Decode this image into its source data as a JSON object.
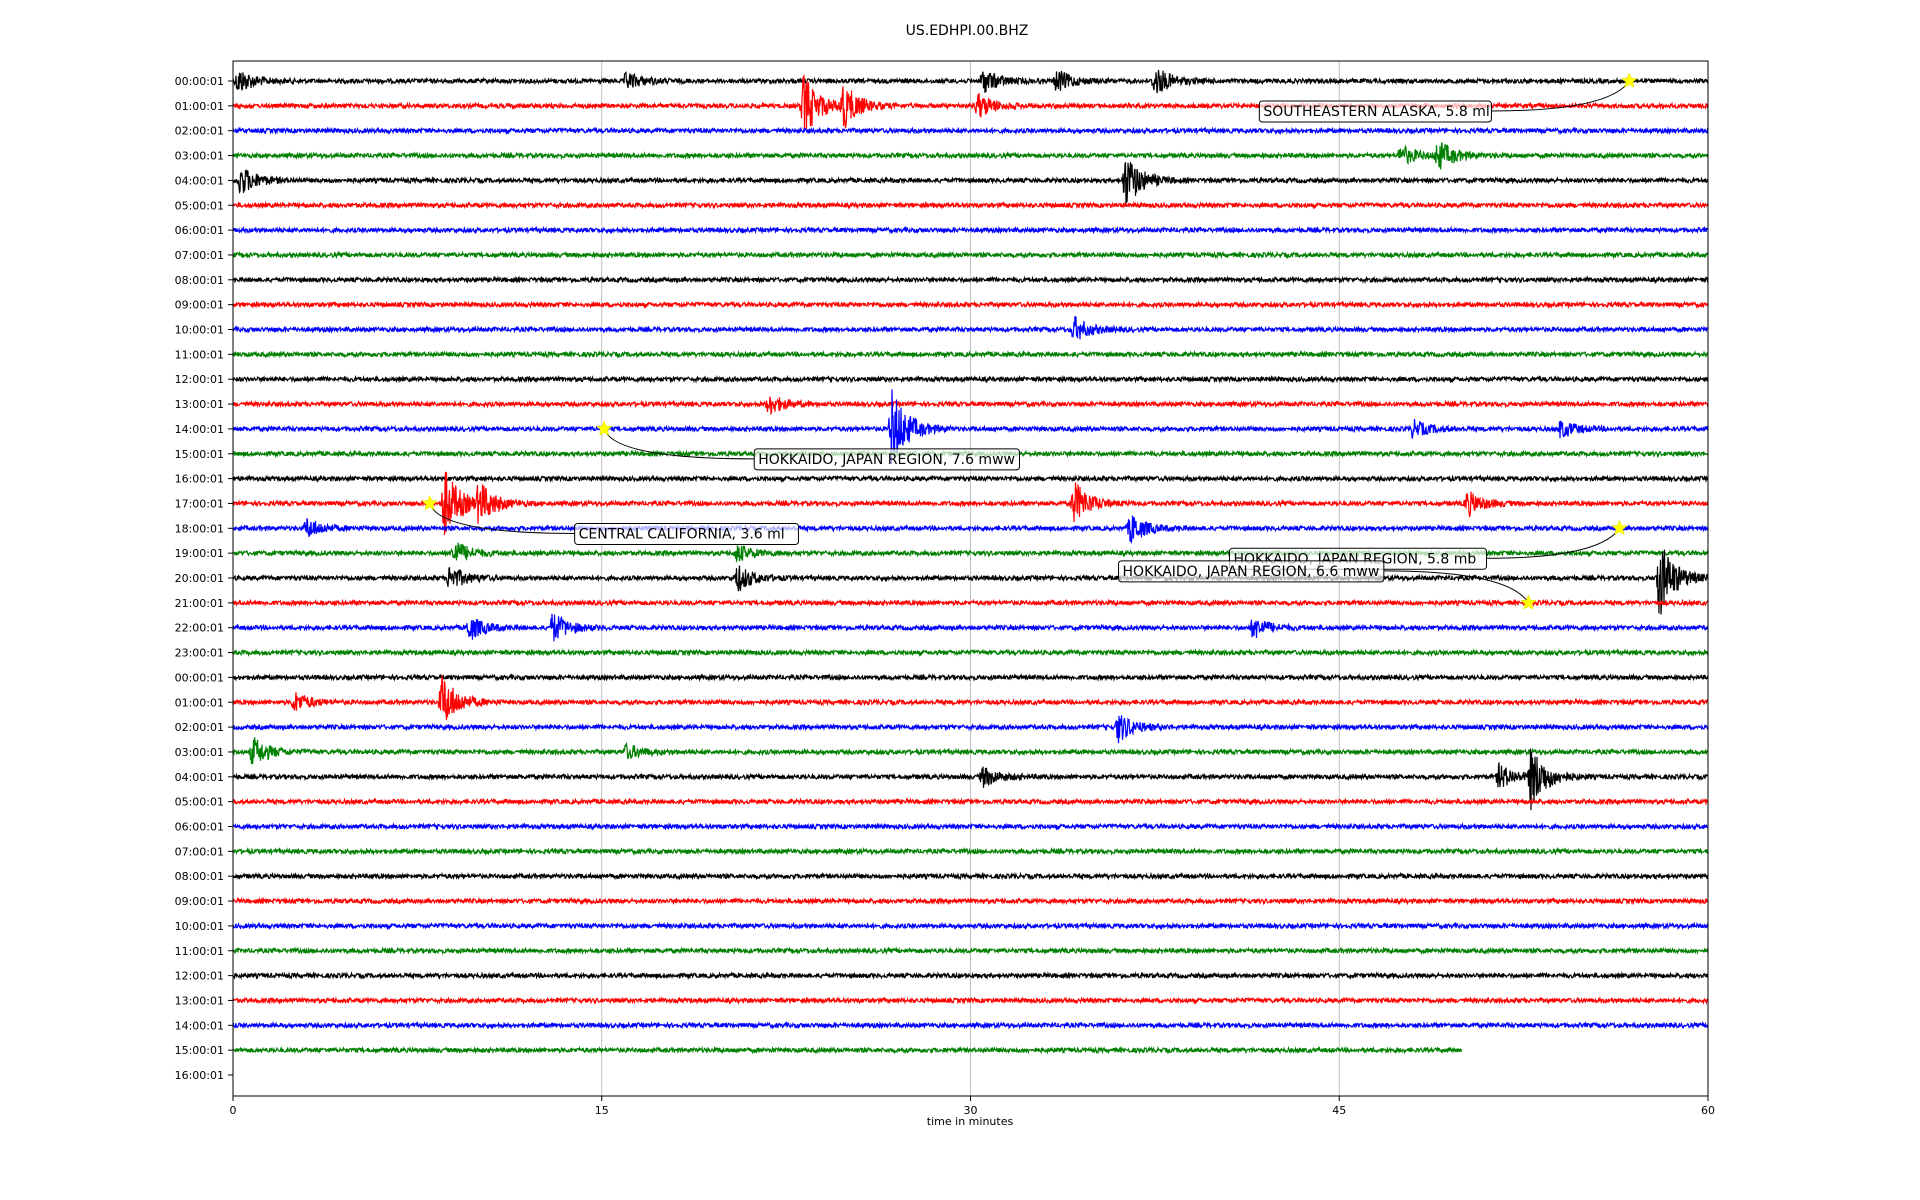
{
  "chart_data": {
    "type": "line",
    "title": "US.EDHPI.00.BHZ",
    "xlabel": "time in minutes",
    "ylabel": "",
    "xlim": [
      0,
      60
    ],
    "x_ticks": [
      "0",
      "15",
      "30",
      "45",
      "60"
    ],
    "x_tick_values": [
      0,
      15,
      30,
      45,
      60
    ],
    "grid": true,
    "trace_colors": [
      "#000000",
      "#ff0000",
      "#0000ff",
      "#008000"
    ],
    "row_labels": [
      "00:00:01",
      "01:00:01",
      "02:00:01",
      "03:00:01",
      "04:00:01",
      "05:00:01",
      "06:00:01",
      "07:00:01",
      "08:00:01",
      "09:00:01",
      "10:00:01",
      "11:00:01",
      "12:00:01",
      "13:00:01",
      "14:00:01",
      "15:00:01",
      "16:00:01",
      "17:00:01",
      "18:00:01",
      "19:00:01",
      "20:00:01",
      "21:00:01",
      "22:00:01",
      "23:00:01",
      "00:00:01",
      "01:00:01",
      "02:00:01",
      "03:00:01",
      "04:00:01",
      "05:00:01",
      "06:00:01",
      "07:00:01",
      "08:00:01",
      "09:00:01",
      "10:00:01",
      "11:00:01",
      "12:00:01",
      "13:00:01",
      "14:00:01",
      "15:00:01",
      "16:00:01"
    ],
    "last_trace_end_minute": 50,
    "bursts": [
      {
        "row": 0,
        "minute": 0.2,
        "amp": 0.5
      },
      {
        "row": 0,
        "minute": 16,
        "amp": 0.35
      },
      {
        "row": 0,
        "minute": 30.5,
        "amp": 0.5
      },
      {
        "row": 0,
        "minute": 33.5,
        "amp": 0.45
      },
      {
        "row": 0,
        "minute": 37.5,
        "amp": 0.6
      },
      {
        "row": 1,
        "minute": 23.2,
        "amp": 1.3
      },
      {
        "row": 1,
        "minute": 24.8,
        "amp": 0.9
      },
      {
        "row": 1,
        "minute": 30.3,
        "amp": 0.5
      },
      {
        "row": 3,
        "minute": 47.5,
        "amp": 0.4
      },
      {
        "row": 3,
        "minute": 49,
        "amp": 0.6
      },
      {
        "row": 4,
        "minute": 0.3,
        "amp": 0.6
      },
      {
        "row": 4,
        "minute": 36.3,
        "amp": 1.1
      },
      {
        "row": 10,
        "minute": 34.2,
        "amp": 0.5
      },
      {
        "row": 13,
        "minute": 21.8,
        "amp": 0.4
      },
      {
        "row": 14,
        "minute": 26.8,
        "amp": 1.6
      },
      {
        "row": 14,
        "minute": 48,
        "amp": 0.35
      },
      {
        "row": 14,
        "minute": 54,
        "amp": 0.35
      },
      {
        "row": 17,
        "minute": 8.6,
        "amp": 1.4
      },
      {
        "row": 17,
        "minute": 10,
        "amp": 0.8
      },
      {
        "row": 17,
        "minute": 34.2,
        "amp": 0.9
      },
      {
        "row": 17,
        "minute": 50.2,
        "amp": 0.5
      },
      {
        "row": 18,
        "minute": 3,
        "amp": 0.4
      },
      {
        "row": 18,
        "minute": 36.5,
        "amp": 0.6
      },
      {
        "row": 19,
        "minute": 9,
        "amp": 0.5
      },
      {
        "row": 19,
        "minute": 20.5,
        "amp": 0.35
      },
      {
        "row": 20,
        "minute": 8.8,
        "amp": 0.5
      },
      {
        "row": 20,
        "minute": 20.5,
        "amp": 0.55
      },
      {
        "row": 20,
        "minute": 58,
        "amp": 1.6
      },
      {
        "row": 22,
        "minute": 9.6,
        "amp": 0.5
      },
      {
        "row": 22,
        "minute": 13,
        "amp": 0.6
      },
      {
        "row": 22,
        "minute": 41.5,
        "amp": 0.45
      },
      {
        "row": 25,
        "minute": 2.5,
        "amp": 0.4
      },
      {
        "row": 25,
        "minute": 8.5,
        "amp": 1.1
      },
      {
        "row": 26,
        "minute": 36,
        "amp": 0.6
      },
      {
        "row": 27,
        "minute": 0.8,
        "amp": 0.6
      },
      {
        "row": 27,
        "minute": 16,
        "amp": 0.3
      },
      {
        "row": 28,
        "minute": 30.5,
        "amp": 0.4
      },
      {
        "row": 28,
        "minute": 51.5,
        "amp": 0.5
      },
      {
        "row": 28,
        "minute": 52.8,
        "amp": 1.2
      }
    ],
    "events": [
      {
        "label": "SOUTHEASTERN ALASKA, 5.8 ml",
        "row": 0,
        "minute": 56.8
      },
      {
        "label": "HOKKAIDO, JAPAN REGION, 7.6 mww",
        "row": 14,
        "minute": 15.1
      },
      {
        "label": "CENTRAL CALIFORNIA, 3.6 ml",
        "row": 17,
        "minute": 8.0
      },
      {
        "label": "HOKKAIDO, JAPAN REGION, 5.8 mb",
        "row": 18,
        "minute": 56.4
      },
      {
        "label": "HOKKAIDO, JAPAN REGION, 6.6 mww",
        "row": 21,
        "minute": 52.7
      }
    ]
  }
}
